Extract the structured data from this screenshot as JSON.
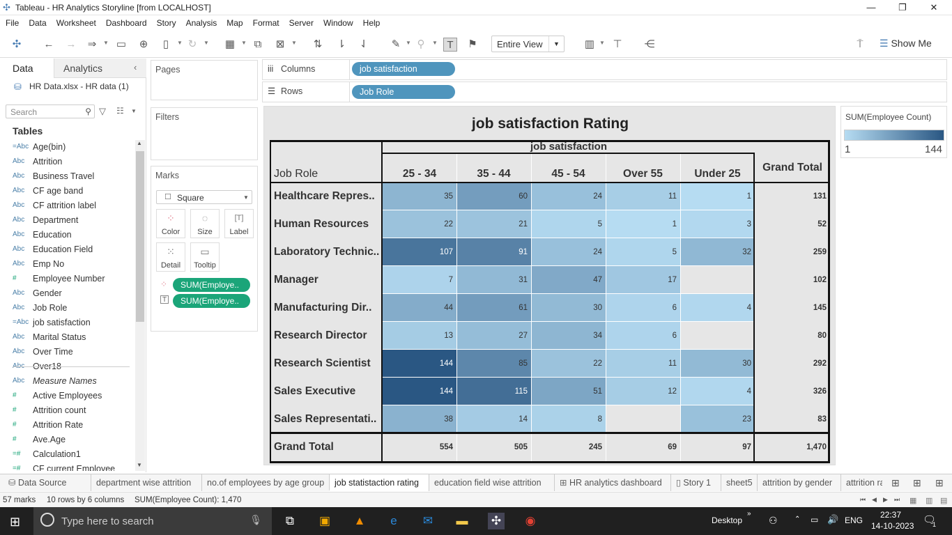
{
  "window": {
    "title": "Tableau - HR Analytics Storyline [from LOCALHOST]"
  },
  "menu": [
    "File",
    "Data",
    "Worksheet",
    "Dashboard",
    "Story",
    "Analysis",
    "Map",
    "Format",
    "Server",
    "Window",
    "Help"
  ],
  "toolbar": {
    "fit_label": "Entire View",
    "show_me": "Show Me"
  },
  "left_pane": {
    "tab_data": "Data",
    "tab_analytics": "Analytics",
    "datasource": "HR Data.xlsx - HR data (1)",
    "search_placeholder": "Search",
    "tables_heading": "Tables",
    "fields": [
      {
        "type": "=Abc",
        "name": "Age(bin)"
      },
      {
        "type": "Abc",
        "name": "Attrition"
      },
      {
        "type": "Abc",
        "name": "Business Travel"
      },
      {
        "type": "Abc",
        "name": "CF age band"
      },
      {
        "type": "Abc",
        "name": "CF attrition label"
      },
      {
        "type": "Abc",
        "name": "Department"
      },
      {
        "type": "Abc",
        "name": "Education"
      },
      {
        "type": "Abc",
        "name": "Education Field"
      },
      {
        "type": "Abc",
        "name": "Emp No"
      },
      {
        "type": "#",
        "name": "Employee Number"
      },
      {
        "type": "Abc",
        "name": "Gender"
      },
      {
        "type": "Abc",
        "name": "Job Role"
      },
      {
        "type": "=Abc",
        "name": "job satisfaction"
      },
      {
        "type": "Abc",
        "name": "Marital Status"
      },
      {
        "type": "Abc",
        "name": "Over Time"
      },
      {
        "type": "Abc",
        "name": "Over18"
      },
      {
        "type": "Abc",
        "name": "Measure Names"
      },
      {
        "type": "#",
        "name": "Active Employees"
      },
      {
        "type": "#",
        "name": "Attrition count"
      },
      {
        "type": "#",
        "name": "Attrition Rate"
      },
      {
        "type": "#",
        "name": "Ave.Age"
      },
      {
        "type": "=#",
        "name": "Calculation1"
      },
      {
        "type": "=#",
        "name": "CF current Employee"
      }
    ]
  },
  "cards": {
    "pages": "Pages",
    "filters": "Filters",
    "marks": "Marks",
    "mark_type": "Square",
    "mark_buttons": [
      "Color",
      "Size",
      "Label",
      "Detail",
      "Tooltip"
    ],
    "mark_pills": [
      "SUM(Employe..",
      "SUM(Employe.."
    ]
  },
  "shelves": {
    "columns_label": "Columns",
    "columns_pill": "job satisfaction",
    "rows_label": "Rows",
    "rows_pill": "Job Role"
  },
  "legend": {
    "title": "SUM(Employee Count)",
    "min": "1",
    "max": "144"
  },
  "chart_data": {
    "type": "heatmap",
    "title": "job satisfaction Rating",
    "column_header": "job satisfaction",
    "row_header": "Job Role",
    "columns": [
      "25 - 34",
      "35 - 44",
      "45 - 54",
      "Over 55",
      "Under 25"
    ],
    "grand_total_label": "Grand Total",
    "rows": [
      {
        "label": "Healthcare Repres..",
        "values": [
          35,
          60,
          24,
          11,
          1
        ],
        "total": "131"
      },
      {
        "label": "Human Resources",
        "values": [
          22,
          21,
          5,
          1,
          3
        ],
        "total": "52"
      },
      {
        "label": "Laboratory Technic..",
        "values": [
          107,
          91,
          24,
          5,
          32
        ],
        "total": "259"
      },
      {
        "label": "Manager",
        "values": [
          7,
          31,
          47,
          17,
          null
        ],
        "total": "102"
      },
      {
        "label": "Manufacturing Dir..",
        "values": [
          44,
          61,
          30,
          6,
          4
        ],
        "total": "145"
      },
      {
        "label": "Research Director",
        "values": [
          13,
          27,
          34,
          6,
          null
        ],
        "total": "80"
      },
      {
        "label": "Research Scientist",
        "values": [
          144,
          85,
          22,
          11,
          30
        ],
        "total": "292"
      },
      {
        "label": "Sales Executive",
        "values": [
          144,
          115,
          51,
          12,
          4
        ],
        "total": "326"
      },
      {
        "label": "Sales Representati..",
        "values": [
          38,
          14,
          8,
          null,
          23
        ],
        "total": "83"
      }
    ],
    "column_totals": [
      "554",
      "505",
      "245",
      "69",
      "97"
    ],
    "overall_total": "1,470",
    "color_range": [
      1,
      144
    ],
    "colors": {
      "low": "#b6dcf2",
      "high": "#2a5783"
    }
  },
  "sheet_tabs": [
    "Data Source",
    "department wise attrition",
    "no.of employees by age group",
    "job statistaction rating",
    "education field wise attrition",
    "HR analytics dashboard",
    "Story 1",
    "sheet5",
    "attrition by gender",
    "attrition ra"
  ],
  "status": {
    "marks": "57 marks",
    "dims": "10 rows by 6 columns",
    "sum": "SUM(Employee Count): 1,470"
  },
  "taskbar": {
    "search_placeholder": "Type here to search",
    "desktop": "Desktop",
    "lang": "ENG",
    "time": "22:37",
    "date": "14-10-2023",
    "notif_count": "1"
  }
}
